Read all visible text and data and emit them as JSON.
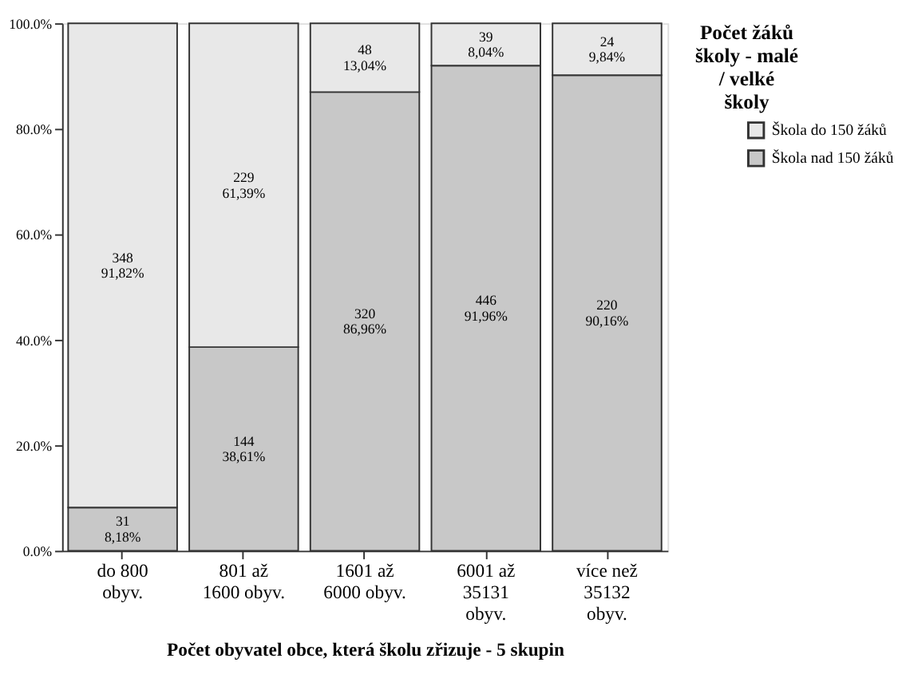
{
  "chart_data": {
    "type": "bar",
    "stacked": true,
    "xlabel": "Počet obyvatel obce, která školu zřizuje - 5 skupin",
    "legend_title": "Počet žáků školy - malé / velké školy",
    "legend": "top right",
    "grid": false,
    "categories": [
      "do 800 obyv.",
      "801 až 1600 obyv.",
      "1601 až 6000 obyv.",
      "6001 až 35131 obyv.",
      "více než 35132 obyv."
    ],
    "ylim": [
      0,
      100
    ],
    "yticks": [
      {
        "value": 0,
        "label": "0.0%"
      },
      {
        "value": 20,
        "label": "20.0%"
      },
      {
        "value": 40,
        "label": "40.0%"
      },
      {
        "value": 60,
        "label": "60.0%"
      },
      {
        "value": 80,
        "label": "80.0%"
      },
      {
        "value": 100,
        "label": "100.0%"
      }
    ],
    "series": [
      {
        "name": "Škola nad 150 žáků",
        "color": "#c8c8c8",
        "values": [
          8.18,
          38.61,
          86.96,
          91.96,
          90.16
        ],
        "value_labels": [
          "31 8,18%",
          "144 38,61%",
          "320 86,96%",
          "446 91,96%",
          "220 90,16%"
        ]
      },
      {
        "name": "Škola do 150 žáků",
        "color": "#e8e8e8",
        "values": [
          91.82,
          61.39,
          13.04,
          8.04,
          9.84
        ],
        "value_labels": [
          "348 91,82%",
          "229 61,39%",
          "48 13,04%",
          "39 8,04%",
          "24 9,84%"
        ]
      }
    ]
  }
}
